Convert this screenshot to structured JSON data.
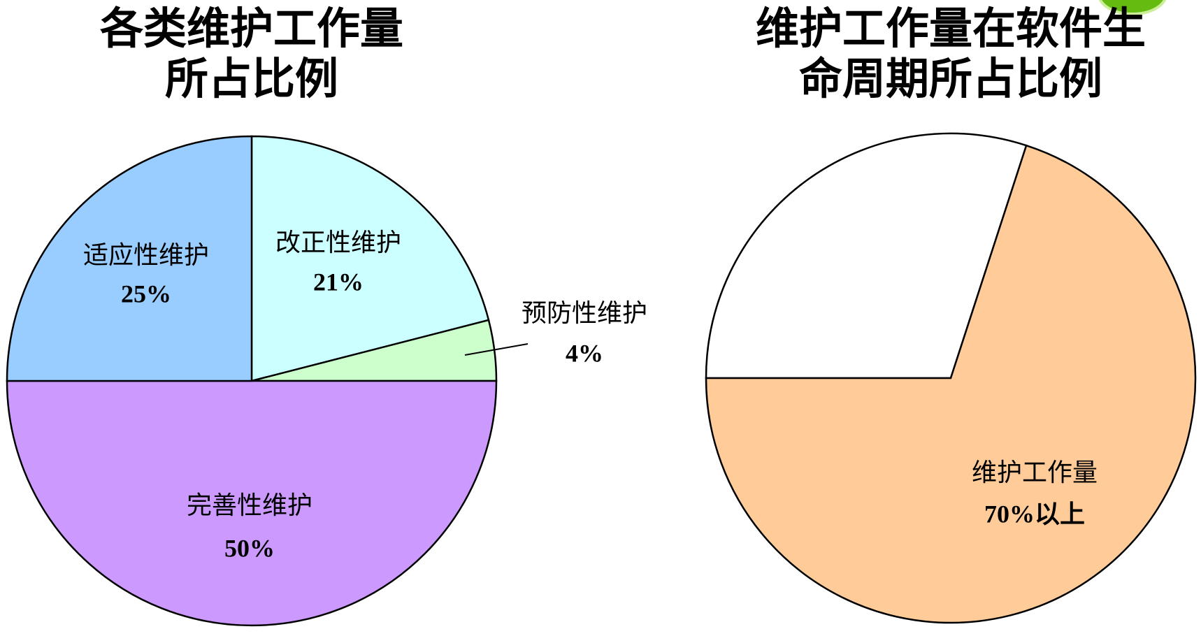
{
  "chart_data": [
    {
      "type": "pie",
      "title": [
        "各类维护工作量",
        "所占比例"
      ],
      "categories": [
        "改正性维护",
        "预防性维护",
        "完善性维护",
        "适应性维护"
      ],
      "values": [
        21,
        4,
        50,
        25
      ],
      "value_labels": [
        "21%",
        "4%",
        "50%",
        "25%"
      ],
      "colors": [
        "#ccffff",
        "#ccffcc",
        "#cc99ff",
        "#99ccff"
      ]
    },
    {
      "type": "pie",
      "title": [
        "维护工作量在软件生",
        "命周期所占比例"
      ],
      "categories": [
        null,
        "维护工作量"
      ],
      "values": [
        30,
        70
      ],
      "value_labels": [
        null,
        "70%以上"
      ],
      "colors": [
        "#ffffff",
        "#ffcc99"
      ]
    }
  ]
}
